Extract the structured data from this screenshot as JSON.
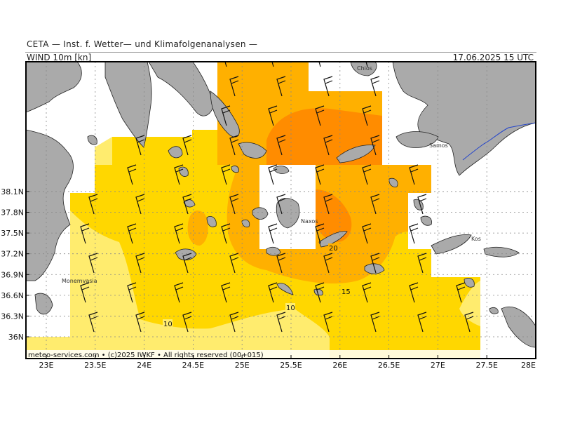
{
  "header": {
    "title": "CETA — Inst. f. Wetter— und Klimafolgenanalysen —",
    "variable": "WIND  10m  [kn]",
    "valid_time": "17.06.2025 15 UTC"
  },
  "footer": {
    "credit": "meteo-services.com • (c)2025 IWKF • All rights reserved (00+015)"
  },
  "axes": {
    "lat_labels": [
      "38.1N",
      "37.8N",
      "37.5N",
      "37.2N",
      "36.9N",
      "36.6N",
      "36.3N",
      "36N"
    ],
    "lon_labels": [
      "23E",
      "23.5E",
      "24E",
      "24.5E",
      "25E",
      "25.5E",
      "26E",
      "26.5E",
      "27E",
      "27.5E",
      "28E"
    ],
    "lat_values": [
      38.1,
      37.8,
      37.5,
      37.2,
      36.9,
      36.6,
      36.3,
      36.0
    ],
    "lon_values": [
      23.0,
      23.5,
      24.0,
      24.5,
      25.0,
      25.5,
      26.0,
      26.5,
      27.0,
      27.5,
      28.0
    ],
    "gridlines": true
  },
  "places": [
    "Chios",
    "Samos",
    "Naxos",
    "Kos",
    "Monemvasia"
  ],
  "contours": [
    "10",
    "15",
    "20"
  ],
  "colors": {
    "land": "#aaaaaa",
    "sea_blank": "#ffffff",
    "wind_5_10": "#ffec6e",
    "wind_10_15": "#ffd700",
    "wind_15_20": "#ffb000",
    "wind_20_25": "#ff8c00",
    "border": "#2244cc"
  }
}
